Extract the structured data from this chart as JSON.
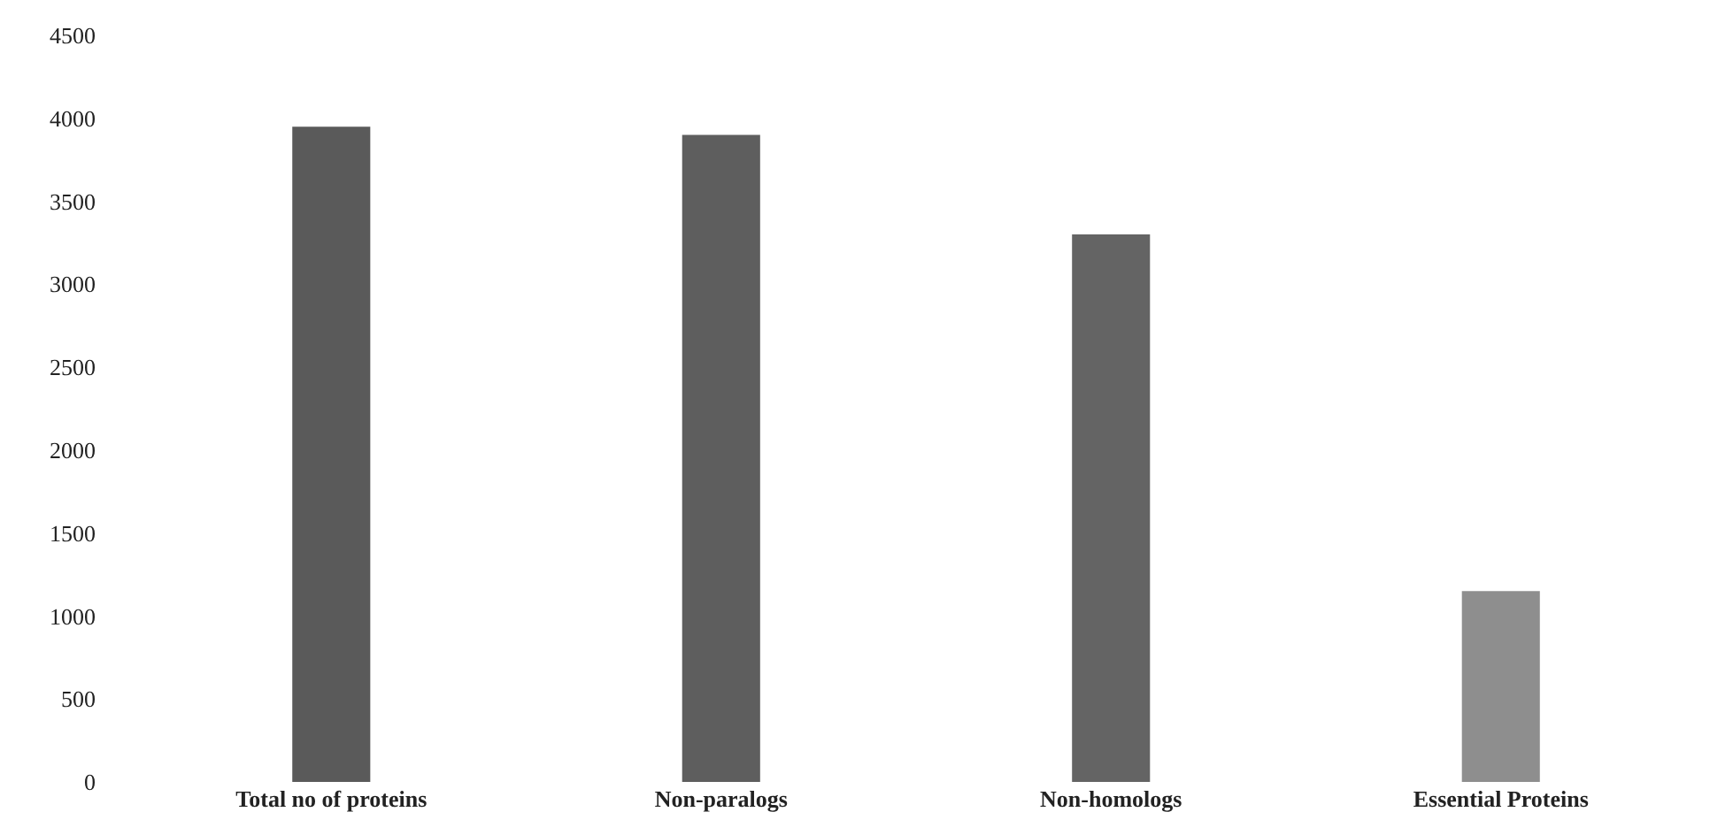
{
  "chart_data": {
    "type": "bar",
    "categories": [
      "Total no of proteins",
      "Non-paralogs",
      "Non-homologs",
      "Essential Proteins"
    ],
    "values": [
      3950,
      3900,
      3300,
      1150
    ],
    "colors": [
      "#5a5a5a",
      "#5e5e5e",
      "#646464",
      "#8e8e8e"
    ],
    "ylim": [
      0,
      4500
    ],
    "yticks": [
      0,
      500,
      1000,
      1500,
      2000,
      2500,
      3000,
      3500,
      4000,
      4500
    ]
  }
}
